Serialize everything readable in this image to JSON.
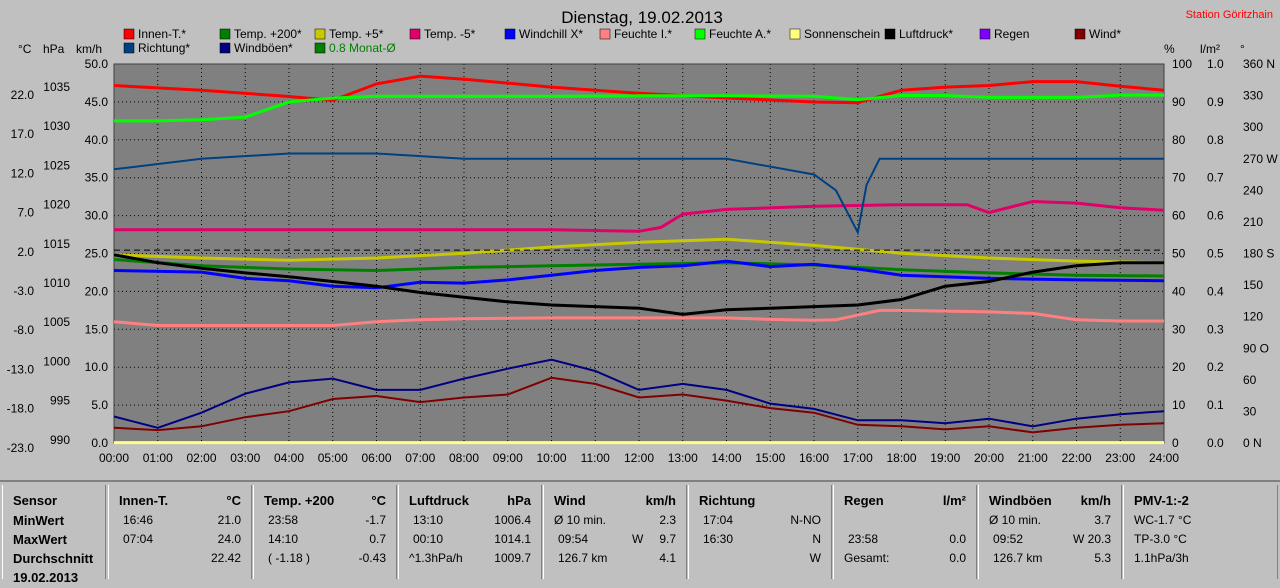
{
  "chart_data": {
    "type": "line",
    "title": "Dienstag, 19.02.2013",
    "station": "Station Göritzhain",
    "axis_units": {
      "celsius": "°C",
      "hpa": "hPa",
      "kmh": "km/h",
      "percent": "%",
      "rain": "l/m²",
      "degree": "°"
    },
    "x_ticks": [
      "00:00",
      "01:00",
      "02:00",
      "03:00",
      "04:00",
      "05:00",
      "06:00",
      "07:00",
      "08:00",
      "09:00",
      "10:00",
      "11:00",
      "12:00",
      "13:00",
      "14:00",
      "15:00",
      "16:00",
      "17:00",
      "18:00",
      "19:00",
      "20:00",
      "21:00",
      "22:00",
      "23:00",
      "24:00"
    ],
    "y_ticks_celsius": [
      "22.0",
      "17.0",
      "12.0",
      "7.0",
      "2.0",
      "-3.0",
      "-8.0",
      "-13.0",
      "-18.0",
      "-23.0"
    ],
    "y_ticks_hpa": [
      "1035",
      "1030",
      "1025",
      "1020",
      "1015",
      "1010",
      "1005",
      "1000",
      "995",
      "990"
    ],
    "y_ticks_kmh": [
      "50.0",
      "45.0",
      "40.0",
      "35.0",
      "30.0",
      "25.0",
      "20.0",
      "15.0",
      "10.0",
      "5.0",
      "0.0"
    ],
    "y_ticks_percent": [
      "100",
      "90",
      "80",
      "70",
      "60",
      "50",
      "40",
      "30",
      "20",
      "10",
      "0"
    ],
    "y_ticks_rain": [
      "1.0",
      "0.9",
      "0.8",
      "0.7",
      "0.6",
      "0.5",
      "0.4",
      "0.3",
      "0.2",
      "0.1",
      "0.0"
    ],
    "y_ticks_degree": [
      "360 N",
      "330",
      "300",
      "270 W",
      "240",
      "210",
      "180 S",
      "150",
      "120",
      "90 O",
      "60",
      "30",
      "0 N"
    ],
    "legend": [
      {
        "name": "Innen-T.*",
        "color": "#ff0000"
      },
      {
        "name": "Temp. +200*",
        "color": "#008000"
      },
      {
        "name": "Temp. +5*",
        "color": "#c8c800"
      },
      {
        "name": "Temp. -5*",
        "color": "#e0006a"
      },
      {
        "name": "Windchill X*",
        "color": "#0000ff"
      },
      {
        "name": "Feuchte I.*",
        "color": "#ff8080"
      },
      {
        "name": "Feuchte A.*",
        "color": "#00ff00"
      },
      {
        "name": "Sonnenschein",
        "color": "#ffff80"
      },
      {
        "name": "Luftdruck*",
        "color": "#000000"
      },
      {
        "name": "Regen",
        "color": "#8000ff"
      },
      {
        "name": "Wind*",
        "color": "#800000"
      },
      {
        "name": "Richtung*",
        "color": "#004080"
      },
      {
        "name": "Windböen*",
        "color": "#000080"
      },
      {
        "name": "0.8 Monat-Ø",
        "color": "#008000"
      }
    ],
    "series": [
      {
        "name": "Innen-T.*",
        "axis": "celsius",
        "color": "#ff0000",
        "x": [
          0,
          2,
          4,
          5,
          6,
          7,
          8,
          10,
          12,
          14,
          16,
          17,
          18,
          19,
          20,
          21,
          22,
          23,
          24
        ],
        "y": [
          22.6,
          22.0,
          21.2,
          20.7,
          22.8,
          23.8,
          23.4,
          22.4,
          21.6,
          21.0,
          20.5,
          20.4,
          22.0,
          22.4,
          22.6,
          23.1,
          23.1,
          22.5,
          22.0
        ]
      },
      {
        "name": "Temp. +200*",
        "axis": "celsius",
        "color": "#008000",
        "x": [
          0,
          2,
          4,
          6,
          8,
          10,
          12,
          14,
          16,
          18,
          20,
          22,
          24
        ],
        "y": [
          0.4,
          -0.4,
          -0.8,
          -1.0,
          -0.6,
          -0.4,
          -0.2,
          0.0,
          -0.3,
          -0.9,
          -1.3,
          -1.6,
          -1.7
        ]
      },
      {
        "name": "Temp. +5*",
        "axis": "celsius",
        "color": "#c8c800",
        "x": [
          0,
          2,
          4,
          6,
          8,
          10,
          12,
          14,
          15,
          16,
          18,
          20,
          22,
          24
        ],
        "y": [
          1.0,
          0.6,
          0.3,
          0.6,
          1.2,
          2.0,
          2.6,
          3.0,
          2.6,
          2.2,
          1.2,
          0.6,
          0.2,
          0.0
        ]
      },
      {
        "name": "Temp. -5*",
        "axis": "celsius",
        "color": "#e0006a",
        "x": [
          0,
          2,
          4,
          6,
          8,
          10,
          12,
          12.5,
          13,
          14,
          16,
          18,
          19.5,
          20,
          21,
          22,
          23,
          24
        ],
        "y": [
          4.2,
          4.2,
          4.2,
          4.2,
          4.2,
          4.2,
          4.0,
          4.5,
          6.2,
          6.8,
          7.2,
          7.4,
          7.4,
          6.4,
          7.8,
          7.6,
          7.0,
          6.7
        ]
      },
      {
        "name": "Windchill X*",
        "axis": "celsius",
        "color": "#0000ff",
        "x": [
          0,
          2,
          3,
          4,
          5,
          6,
          7,
          8,
          9,
          10,
          11,
          12,
          13,
          14,
          15,
          16,
          17,
          18,
          20,
          22,
          24
        ],
        "y": [
          -1.0,
          -1.2,
          -2.0,
          -2.3,
          -3.0,
          -3.2,
          -2.5,
          -2.6,
          -2.2,
          -1.6,
          -1.0,
          -0.6,
          -0.4,
          0.2,
          -0.5,
          -0.2,
          -0.8,
          -1.6,
          -2.0,
          -2.2,
          -2.3
        ]
      },
      {
        "name": "Feuchte I.*",
        "axis": "percent",
        "color": "#ff8080",
        "x": [
          0,
          1,
          2,
          4,
          5,
          6,
          7,
          8,
          10,
          12,
          14,
          15,
          16,
          16.5,
          17.5,
          18,
          19,
          20,
          21,
          22,
          23,
          24
        ],
        "y": [
          32,
          31,
          31,
          31,
          31,
          32,
          32.5,
          32.8,
          33,
          33,
          33,
          32.6,
          32.4,
          32.5,
          35,
          35,
          34.8,
          34.6,
          34.2,
          32.5,
          32.2,
          32.2
        ]
      },
      {
        "name": "Feuchte A.*",
        "axis": "percent",
        "color": "#00ff00",
        "x": [
          0,
          1,
          2,
          3,
          4,
          5,
          6,
          8,
          10,
          12,
          14,
          16,
          17,
          18,
          19,
          20,
          22,
          23,
          24
        ],
        "y": [
          85,
          85,
          85.3,
          86,
          90,
          91,
          91.5,
          91.5,
          91.5,
          91.6,
          91.6,
          91.5,
          90.6,
          91.7,
          91.7,
          91.2,
          91.2,
          91.8,
          91.8
        ]
      },
      {
        "name": "Luftdruck*",
        "axis": "hpa",
        "color": "#000000",
        "x": [
          0,
          1,
          2,
          3,
          4,
          5,
          6,
          7,
          8,
          9,
          10,
          12,
          13,
          14,
          15,
          16,
          17,
          18,
          19,
          20,
          21,
          22,
          23,
          24
        ],
        "y": [
          1014.0,
          1013.0,
          1012.3,
          1011.7,
          1011.2,
          1010.6,
          1010.0,
          1009.2,
          1008.6,
          1008.0,
          1007.6,
          1007.2,
          1006.4,
          1007.0,
          1007.2,
          1007.4,
          1007.6,
          1008.3,
          1010.0,
          1010.6,
          1011.8,
          1012.6,
          1013.0,
          1013.0
        ]
      },
      {
        "name": "Wind*",
        "axis": "kmh",
        "color": "#800000",
        "x": [
          0,
          1,
          2,
          3,
          4,
          5,
          6,
          7,
          8,
          9,
          10,
          11,
          12,
          13,
          14,
          15,
          16,
          17,
          18,
          19,
          20,
          21,
          22,
          23,
          24
        ],
        "y": [
          2.0,
          1.7,
          2.2,
          3.4,
          4.2,
          5.8,
          6.2,
          5.4,
          6.0,
          6.4,
          8.6,
          7.8,
          6.0,
          6.4,
          5.6,
          4.6,
          4.0,
          2.4,
          2.2,
          1.8,
          2.2,
          1.4,
          2.0,
          2.4,
          2.6
        ]
      },
      {
        "name": "Windböen*",
        "axis": "kmh",
        "color": "#000080",
        "x": [
          0,
          1,
          2,
          3,
          4,
          5,
          6,
          7,
          8,
          9,
          10,
          11,
          12,
          13,
          14,
          15,
          16,
          17,
          18,
          19,
          20,
          21,
          22,
          23,
          24
        ],
        "y": [
          3.5,
          2.0,
          4.0,
          6.5,
          8.0,
          8.5,
          7.0,
          7.0,
          8.5,
          9.8,
          11.0,
          9.5,
          7.0,
          7.8,
          7.0,
          5.2,
          4.5,
          3.0,
          3.0,
          2.6,
          3.2,
          2.2,
          3.2,
          3.8,
          4.2
        ]
      },
      {
        "name": "Richtung*",
        "axis": "degree",
        "color": "#004080",
        "x": [
          0,
          2,
          4,
          6,
          8,
          10,
          12,
          14,
          16,
          16.5,
          17,
          17.2,
          17.5,
          24
        ],
        "y": [
          260,
          270,
          275,
          275,
          270,
          270,
          270,
          270,
          255,
          240,
          200,
          245,
          270,
          270
        ]
      },
      {
        "name": "0.8 Monat-Ø",
        "axis": "celsius",
        "color": "#000000",
        "dashed": true,
        "x": [
          0,
          24
        ],
        "y": [
          1.6,
          1.6
        ]
      },
      {
        "name": "Sonnenschein",
        "axis": "kmh",
        "color": "#ffff80",
        "x": [
          0,
          24
        ],
        "y": [
          0.05,
          0.05
        ]
      }
    ]
  },
  "stats": {
    "sensor": {
      "head": "Sensor",
      "min": "MinWert",
      "max": "MaxWert",
      "avg": "Durchschnitt",
      "extra": "19.02.2013"
    },
    "innen": {
      "head": "Innen-T.",
      "unit": "°C",
      "min_time": "16:46",
      "min_val": "21.0",
      "max_time": "07:04",
      "max_val": "24.0",
      "avg_val": "22.42"
    },
    "temp200": {
      "head": "Temp. +200",
      "unit": "°C",
      "min_time": "23:58",
      "min_val": "-1.7",
      "max_time": "14:10",
      "max_val": "0.7",
      "avg_note": "( -1.18 )",
      "avg_val": "-0.43"
    },
    "luftdruck": {
      "head": "Luftdruck",
      "unit": "hPa",
      "min_time": "13:10",
      "min_val": "1006.4",
      "max_time": "00:10",
      "max_val": "1014.1",
      "avg_note": "^1.3hPa/h",
      "avg_val": "1009.7"
    },
    "wind": {
      "head": "Wind",
      "unit": "km/h",
      "min_note": "Ø 10 min.",
      "min_val": "2.3",
      "max_time": "09:54",
      "max_dir": "W",
      "max_val": "9.7",
      "avg_note": "126.7 km",
      "avg_val": "4.1"
    },
    "richtung": {
      "head": "Richtung",
      "min_time": "17:04",
      "min_val": "N-NO",
      "max_time": "16:30",
      "max_val": "N",
      "avg_val": "W"
    },
    "regen": {
      "head": "Regen",
      "unit": "l/m²",
      "max_time": "23:58",
      "max_val": "0.0",
      "avg_note": "Gesamt:",
      "avg_val": "0.0"
    },
    "windboeen": {
      "head": "Windböen",
      "unit": "km/h",
      "min_note": "Ø 10 min.",
      "min_val": "3.7",
      "max_time": "09:52",
      "max_dir": "W",
      "max_val": "20.3",
      "avg_note": "126.7 km",
      "avg_val": "5.3"
    },
    "pmv": {
      "head": "PMV-1:-2",
      "min_val": "WC-1.7 °C",
      "max_val": "TP-3.0 °C",
      "avg_val": "1.1hPa/3h"
    }
  }
}
